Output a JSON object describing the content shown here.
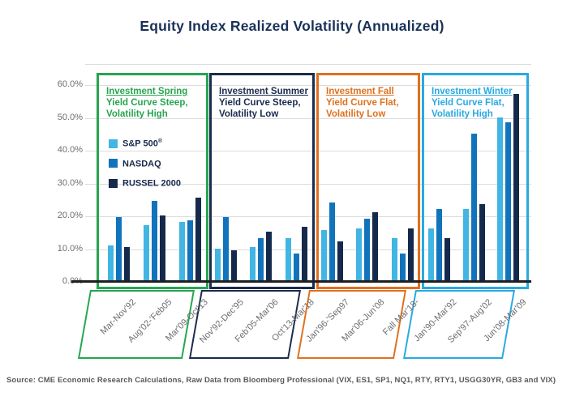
{
  "page": {
    "source": "Source: CME Economic Research Calculations, Raw Data from Bloomberg Professional (VIX, ES1, SP1, NQ1, RTY, RTY1, USGG30YR, GB3 and VIX)"
  },
  "chart_data": {
    "type": "bar",
    "title": "Equity Index Realized Volatility (Annualized)",
    "xlabel": "",
    "ylabel": "",
    "unit": "%",
    "ylim": [
      0,
      60
    ],
    "ytick_labels": [
      "60.0%",
      "50.0%",
      "40.0%",
      "30.0%",
      "20.0%",
      "10.0%",
      "0.0%"
    ],
    "grid": true,
    "legend_position": "inside-first-group",
    "series": [
      {
        "name": "S&P 500",
        "sup": "®",
        "color": "#41b5e3"
      },
      {
        "name": "NASDAQ",
        "sup": "",
        "color": "#1173bb"
      },
      {
        "name": "RUSSEL 2000",
        "sup": "",
        "color": "#14294b"
      }
    ],
    "groups": [
      {
        "name": "Investment Spring",
        "cond1": "Yield Curve Steep,",
        "cond2": "Volatility High",
        "color": "#26a550",
        "categories": [
          "Mar-Nov'92",
          "Aug'02-'Feb05",
          "Mar'09-Oct'13"
        ],
        "values": [
          [
            11,
            19.5,
            10.5
          ],
          [
            17,
            24.5,
            20
          ],
          [
            18,
            18.5,
            25.5
          ]
        ]
      },
      {
        "name": "Investment Summer",
        "cond1": "Yield Curve Steep,",
        "cond2": "Volatility Low",
        "color": "#1b2b4d",
        "categories": [
          "Nov'92-Dec'95",
          "Feb'05-Mar'06",
          "Oct'13-Mar'18"
        ],
        "values": [
          [
            10,
            19.5,
            9.5
          ],
          [
            10.5,
            13,
            15
          ],
          [
            13,
            8.5,
            16.5
          ]
        ]
      },
      {
        "name": "Investment Fall",
        "cond1": "Yield Curve Flat,",
        "cond2": "Volatility Low",
        "color": "#e0701e",
        "categories": [
          "Jan'96-'Sep97",
          "Mar'06-Jun'08",
          "Fall Mar'18-"
        ],
        "values": [
          [
            15.5,
            24,
            12
          ],
          [
            16,
            19,
            21
          ],
          [
            13,
            8.5,
            16
          ]
        ]
      },
      {
        "name": "Investment Winter",
        "cond1": "Yield Curve Flat,",
        "cond2": "Volatility High",
        "color": "#29a9e1",
        "categories": [
          "Jan'90-Mar'92",
          "Sep'97-Aug'02",
          "Jun'08-Mar'09"
        ],
        "values": [
          [
            16,
            22,
            13
          ],
          [
            22,
            45,
            23.5
          ],
          [
            50,
            48.5,
            57
          ]
        ]
      }
    ]
  }
}
